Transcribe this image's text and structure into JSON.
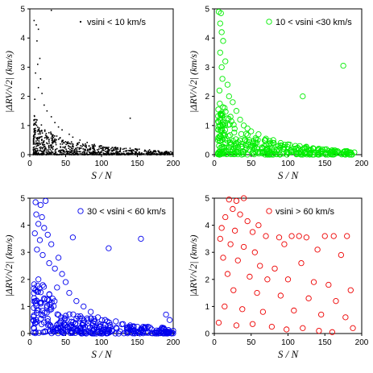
{
  "chart_data": [
    {
      "type": "scatter",
      "legend": "vsini < 10 km/s",
      "legend_position": "top-right",
      "marker": "dot",
      "color": "#000000",
      "xlabel": "S / N",
      "ylabel": "|ΔRV/√2|  (km/s)",
      "xlim": [
        0,
        200
      ],
      "ylim": [
        0,
        5
      ],
      "xticks": [
        "0",
        "50",
        "100",
        "150",
        "200"
      ],
      "yticks": [
        "0",
        "1",
        "2",
        "3",
        "4",
        "5"
      ],
      "points": [
        [
          6,
          4.6
        ],
        [
          9,
          4.45
        ],
        [
          12,
          4.3
        ],
        [
          10,
          3.9
        ],
        [
          14,
          3.3
        ],
        [
          11,
          3.1
        ],
        [
          8,
          2.8
        ],
        [
          15,
          2.6
        ],
        [
          12,
          2.3
        ],
        [
          17,
          2.1
        ],
        [
          7,
          1.9
        ],
        [
          20,
          1.7
        ],
        [
          24,
          1.5
        ],
        [
          30,
          1.3
        ],
        [
          9,
          1.2
        ],
        [
          35,
          1.1
        ],
        [
          40,
          0.95
        ],
        [
          45,
          0.85
        ],
        [
          55,
          0.7
        ],
        [
          60,
          0.6
        ],
        [
          70,
          0.5
        ],
        [
          80,
          0.42
        ],
        [
          90,
          0.35
        ],
        [
          100,
          0.3
        ],
        [
          110,
          0.25
        ],
        [
          120,
          0.22
        ],
        [
          140,
          1.25
        ],
        [
          150,
          0.18
        ],
        [
          160,
          0.12
        ],
        [
          175,
          0.1
        ],
        [
          190,
          0.05
        ],
        [
          30,
          4.95
        ]
      ],
      "dense_region": {
        "x": [
          5,
          200
        ],
        "y_max_at_x": [
          [
            5,
            1.4
          ],
          [
            20,
            0.9
          ],
          [
            50,
            0.5
          ],
          [
            100,
            0.3
          ],
          [
            150,
            0.2
          ],
          [
            200,
            0.1
          ]
        ]
      }
    },
    {
      "type": "scatter",
      "legend": "10 < vsini <30 km/s",
      "legend_position": "top-right",
      "marker": "open-circle",
      "color": "#00ee00",
      "xlabel": "S / N",
      "ylabel": "|ΔRV/√2|  (km/s)",
      "xlim": [
        0,
        200
      ],
      "ylim": [
        0,
        5
      ],
      "xticks": [
        "0",
        "50",
        "100",
        "150",
        "200"
      ],
      "yticks": [
        "0",
        "1",
        "2",
        "3",
        "4",
        "5"
      ],
      "points": [
        [
          6,
          4.9
        ],
        [
          9,
          4.85
        ],
        [
          8,
          4.5
        ],
        [
          10,
          4.2
        ],
        [
          12,
          3.9
        ],
        [
          8,
          3.5
        ],
        [
          15,
          3.2
        ],
        [
          10,
          3.0
        ],
        [
          11,
          2.6
        ],
        [
          18,
          2.4
        ],
        [
          7,
          2.2
        ],
        [
          20,
          2.0
        ],
        [
          25,
          1.8
        ],
        [
          14,
          1.6
        ],
        [
          30,
          1.5
        ],
        [
          22,
          1.3
        ],
        [
          35,
          1.2
        ],
        [
          40,
          1.0
        ],
        [
          45,
          0.9
        ],
        [
          50,
          0.8
        ],
        [
          60,
          0.7
        ],
        [
          70,
          0.55
        ],
        [
          80,
          0.5
        ],
        [
          90,
          0.4
        ],
        [
          100,
          0.35
        ],
        [
          110,
          0.3
        ],
        [
          120,
          2.0
        ],
        [
          125,
          0.25
        ],
        [
          135,
          0.2
        ],
        [
          150,
          0.18
        ],
        [
          160,
          0.15
        ],
        [
          175,
          3.05
        ],
        [
          180,
          0.1
        ],
        [
          190,
          0.08
        ],
        [
          30,
          0.4
        ],
        [
          55,
          0.3
        ],
        [
          65,
          0.2
        ],
        [
          85,
          0.15
        ],
        [
          105,
          0.1
        ]
      ],
      "dense_region": {
        "x": [
          5,
          190
        ],
        "y_max_at_x": [
          [
            5,
            2.0
          ],
          [
            20,
            1.3
          ],
          [
            50,
            0.6
          ],
          [
            100,
            0.35
          ],
          [
            150,
            0.2
          ],
          [
            190,
            0.1
          ]
        ]
      }
    },
    {
      "type": "scatter",
      "legend": "30 < vsini < 60 km/s",
      "legend_position": "top-right",
      "marker": "open-circle",
      "color": "#0000ee",
      "xlabel": "S / N",
      "ylabel": "|ΔRV/√2|  (km/s)",
      "xlim": [
        0,
        200
      ],
      "ylim": [
        0,
        5
      ],
      "xticks": [
        "0",
        "50",
        "100",
        "150",
        "200"
      ],
      "yticks": [
        "0",
        "1",
        "2",
        "3",
        "4",
        "5"
      ],
      "points": [
        [
          8,
          4.85
        ],
        [
          15,
          4.75
        ],
        [
          22,
          4.9
        ],
        [
          9,
          4.4
        ],
        [
          17,
          4.3
        ],
        [
          12,
          4.05
        ],
        [
          20,
          3.9
        ],
        [
          7,
          3.7
        ],
        [
          25,
          3.65
        ],
        [
          14,
          3.45
        ],
        [
          30,
          3.3
        ],
        [
          10,
          3.1
        ],
        [
          18,
          2.9
        ],
        [
          40,
          2.8
        ],
        [
          60,
          3.55
        ],
        [
          110,
          3.15
        ],
        [
          155,
          3.5
        ],
        [
          27,
          2.6
        ],
        [
          35,
          2.4
        ],
        [
          45,
          2.2
        ],
        [
          12,
          2.0
        ],
        [
          50,
          1.9
        ],
        [
          38,
          1.7
        ],
        [
          8,
          1.6
        ],
        [
          55,
          1.5
        ],
        [
          20,
          1.3
        ],
        [
          65,
          1.2
        ],
        [
          75,
          1.0
        ],
        [
          30,
          0.9
        ],
        [
          85,
          0.8
        ],
        [
          95,
          0.6
        ],
        [
          105,
          0.5
        ],
        [
          120,
          0.45
        ],
        [
          130,
          0.35
        ],
        [
          140,
          0.3
        ],
        [
          150,
          0.25
        ],
        [
          160,
          0.2
        ],
        [
          170,
          0.15
        ],
        [
          180,
          0.1
        ],
        [
          190,
          0.7
        ],
        [
          195,
          0.5
        ],
        [
          200,
          0.1
        ],
        [
          42,
          0.4
        ],
        [
          58,
          0.3
        ],
        [
          70,
          0.2
        ],
        [
          90,
          0.15
        ],
        [
          115,
          0.1
        ],
        [
          135,
          0.05
        ]
      ],
      "dense_region": {
        "x": [
          5,
          200
        ],
        "y_max_at_x": [
          [
            5,
            2.2
          ],
          [
            25,
            1.6
          ],
          [
            50,
            0.8
          ],
          [
            100,
            0.5
          ],
          [
            150,
            0.3
          ],
          [
            200,
            0.2
          ]
        ]
      }
    },
    {
      "type": "scatter",
      "legend": "vsini > 60 km/s",
      "legend_position": "top-right",
      "marker": "open-circle",
      "color": "#ee0000",
      "xlabel": "S / N",
      "ylabel": "|ΔRV/√2|  (km/s)",
      "xlim": [
        0,
        200
      ],
      "ylim": [
        0,
        5
      ],
      "xticks": [
        "0",
        "50",
        "100",
        "150",
        "200"
      ],
      "yticks": [
        "0",
        "1",
        "2",
        "3",
        "4",
        "5"
      ],
      "points": [
        [
          20,
          4.95
        ],
        [
          30,
          4.9
        ],
        [
          40,
          5.0
        ],
        [
          25,
          4.6
        ],
        [
          35,
          4.4
        ],
        [
          15,
          4.3
        ],
        [
          45,
          4.15
        ],
        [
          60,
          4.0
        ],
        [
          10,
          3.9
        ],
        [
          28,
          3.8
        ],
        [
          52,
          3.75
        ],
        [
          70,
          3.6
        ],
        [
          88,
          3.55
        ],
        [
          105,
          3.6
        ],
        [
          115,
          3.6
        ],
        [
          125,
          3.55
        ],
        [
          150,
          3.6
        ],
        [
          162,
          3.6
        ],
        [
          180,
          3.6
        ],
        [
          8,
          3.5
        ],
        [
          22,
          3.3
        ],
        [
          40,
          3.2
        ],
        [
          55,
          3.0
        ],
        [
          95,
          3.3
        ],
        [
          140,
          3.1
        ],
        [
          12,
          2.8
        ],
        [
          32,
          2.7
        ],
        [
          62,
          2.5
        ],
        [
          82,
          2.4
        ],
        [
          118,
          2.6
        ],
        [
          172,
          2.9
        ],
        [
          18,
          2.2
        ],
        [
          48,
          2.1
        ],
        [
          72,
          2.0
        ],
        [
          100,
          2.0
        ],
        [
          135,
          1.9
        ],
        [
          155,
          1.8
        ],
        [
          26,
          1.6
        ],
        [
          58,
          1.5
        ],
        [
          90,
          1.4
        ],
        [
          128,
          1.3
        ],
        [
          165,
          1.2
        ],
        [
          185,
          1.6
        ],
        [
          14,
          1.0
        ],
        [
          38,
          0.9
        ],
        [
          66,
          0.8
        ],
        [
          108,
          0.85
        ],
        [
          145,
          0.7
        ],
        [
          178,
          0.6
        ],
        [
          6,
          0.4
        ],
        [
          30,
          0.3
        ],
        [
          52,
          0.35
        ],
        [
          78,
          0.25
        ],
        [
          98,
          0.15
        ],
        [
          120,
          0.2
        ],
        [
          142,
          0.1
        ],
        [
          160,
          0.05
        ],
        [
          188,
          0.2
        ]
      ],
      "dense_region": null
    }
  ]
}
